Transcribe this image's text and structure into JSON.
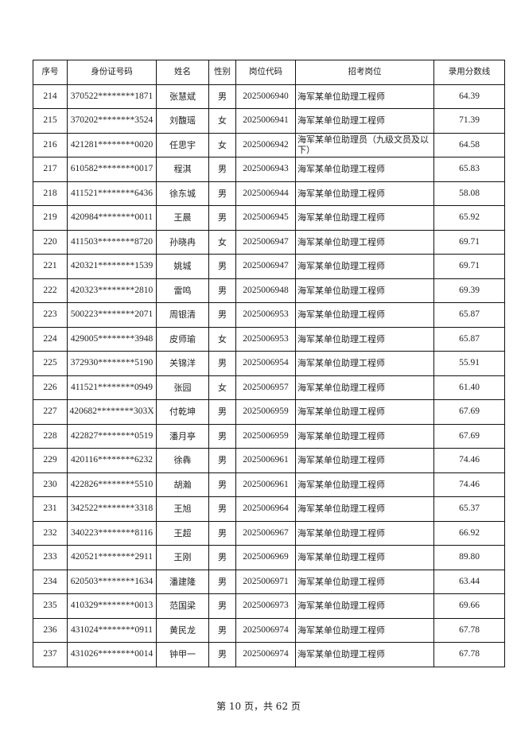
{
  "table": {
    "headers": [
      "序号",
      "身份证号码",
      "姓名",
      "性别",
      "岗位代码",
      "招考岗位",
      "录用分数线"
    ],
    "rows": [
      [
        "214",
        "370522********1871",
        "张慧斌",
        "男",
        "2025006940",
        "海军某单位助理工程师",
        "64.39"
      ],
      [
        "215",
        "370202********3524",
        "刘馥瑶",
        "女",
        "2025006941",
        "海军某单位助理工程师",
        "71.39"
      ],
      [
        "216",
        "421281********0020",
        "任思宇",
        "女",
        "2025006942",
        "海军某单位助理员（九级文员及以下）",
        "64.58"
      ],
      [
        "217",
        "610582********0017",
        "程淇",
        "男",
        "2025006943",
        "海军某单位助理工程师",
        "65.83"
      ],
      [
        "218",
        "411521********6436",
        "徐东城",
        "男",
        "2025006944",
        "海军某单位助理工程师",
        "58.08"
      ],
      [
        "219",
        "420984********0011",
        "王晨",
        "男",
        "2025006945",
        "海军某单位助理工程师",
        "65.92"
      ],
      [
        "220",
        "411503********8720",
        "孙晓冉",
        "女",
        "2025006947",
        "海军某单位助理工程师",
        "69.71"
      ],
      [
        "221",
        "420321********1539",
        "姚城",
        "男",
        "2025006947",
        "海军某单位助理工程师",
        "69.71"
      ],
      [
        "222",
        "420323********2810",
        "雷鸣",
        "男",
        "2025006948",
        "海军某单位助理工程师",
        "69.39"
      ],
      [
        "223",
        "500223********2071",
        "周银清",
        "男",
        "2025006953",
        "海军某单位助理工程师",
        "65.87"
      ],
      [
        "224",
        "429005********3948",
        "皮师瑜",
        "女",
        "2025006953",
        "海军某单位助理工程师",
        "65.87"
      ],
      [
        "225",
        "372930********5190",
        "关锦洋",
        "男",
        "2025006954",
        "海军某单位助理工程师",
        "55.91"
      ],
      [
        "226",
        "411521********0949",
        "张园",
        "女",
        "2025006957",
        "海军某单位助理工程师",
        "61.40"
      ],
      [
        "227",
        "420682********303X",
        "付乾坤",
        "男",
        "2025006959",
        "海军某单位助理工程师",
        "67.69"
      ],
      [
        "228",
        "422827********0519",
        "潘月亭",
        "男",
        "2025006959",
        "海军某单位助理工程师",
        "67.69"
      ],
      [
        "229",
        "420116********6232",
        "徐犇",
        "男",
        "2025006961",
        "海军某单位助理工程师",
        "74.46"
      ],
      [
        "230",
        "422826********5510",
        "胡瀚",
        "男",
        "2025006961",
        "海军某单位助理工程师",
        "74.46"
      ],
      [
        "231",
        "342522********3318",
        "王旭",
        "男",
        "2025006964",
        "海军某单位助理工程师",
        "65.37"
      ],
      [
        "232",
        "340223********8116",
        "王超",
        "男",
        "2025006967",
        "海军某单位助理工程师",
        "66.92"
      ],
      [
        "233",
        "420521********2911",
        "王刚",
        "男",
        "2025006969",
        "海军某单位助理工程师",
        "89.80"
      ],
      [
        "234",
        "620503********1634",
        "潘建隆",
        "男",
        "2025006971",
        "海军某单位助理工程师",
        "63.44"
      ],
      [
        "235",
        "410329********0013",
        "范国梁",
        "男",
        "2025006973",
        "海军某单位助理工程师",
        "69.66"
      ],
      [
        "236",
        "431024********0911",
        "黄民龙",
        "男",
        "2025006974",
        "海军某单位助理工程师",
        "67.78"
      ],
      [
        "237",
        "431026********0014",
        "钟甲一",
        "男",
        "2025006974",
        "海军某单位助理工程师",
        "67.78"
      ]
    ]
  },
  "footer": {
    "page_label": "第 10 页，共 62 页"
  }
}
